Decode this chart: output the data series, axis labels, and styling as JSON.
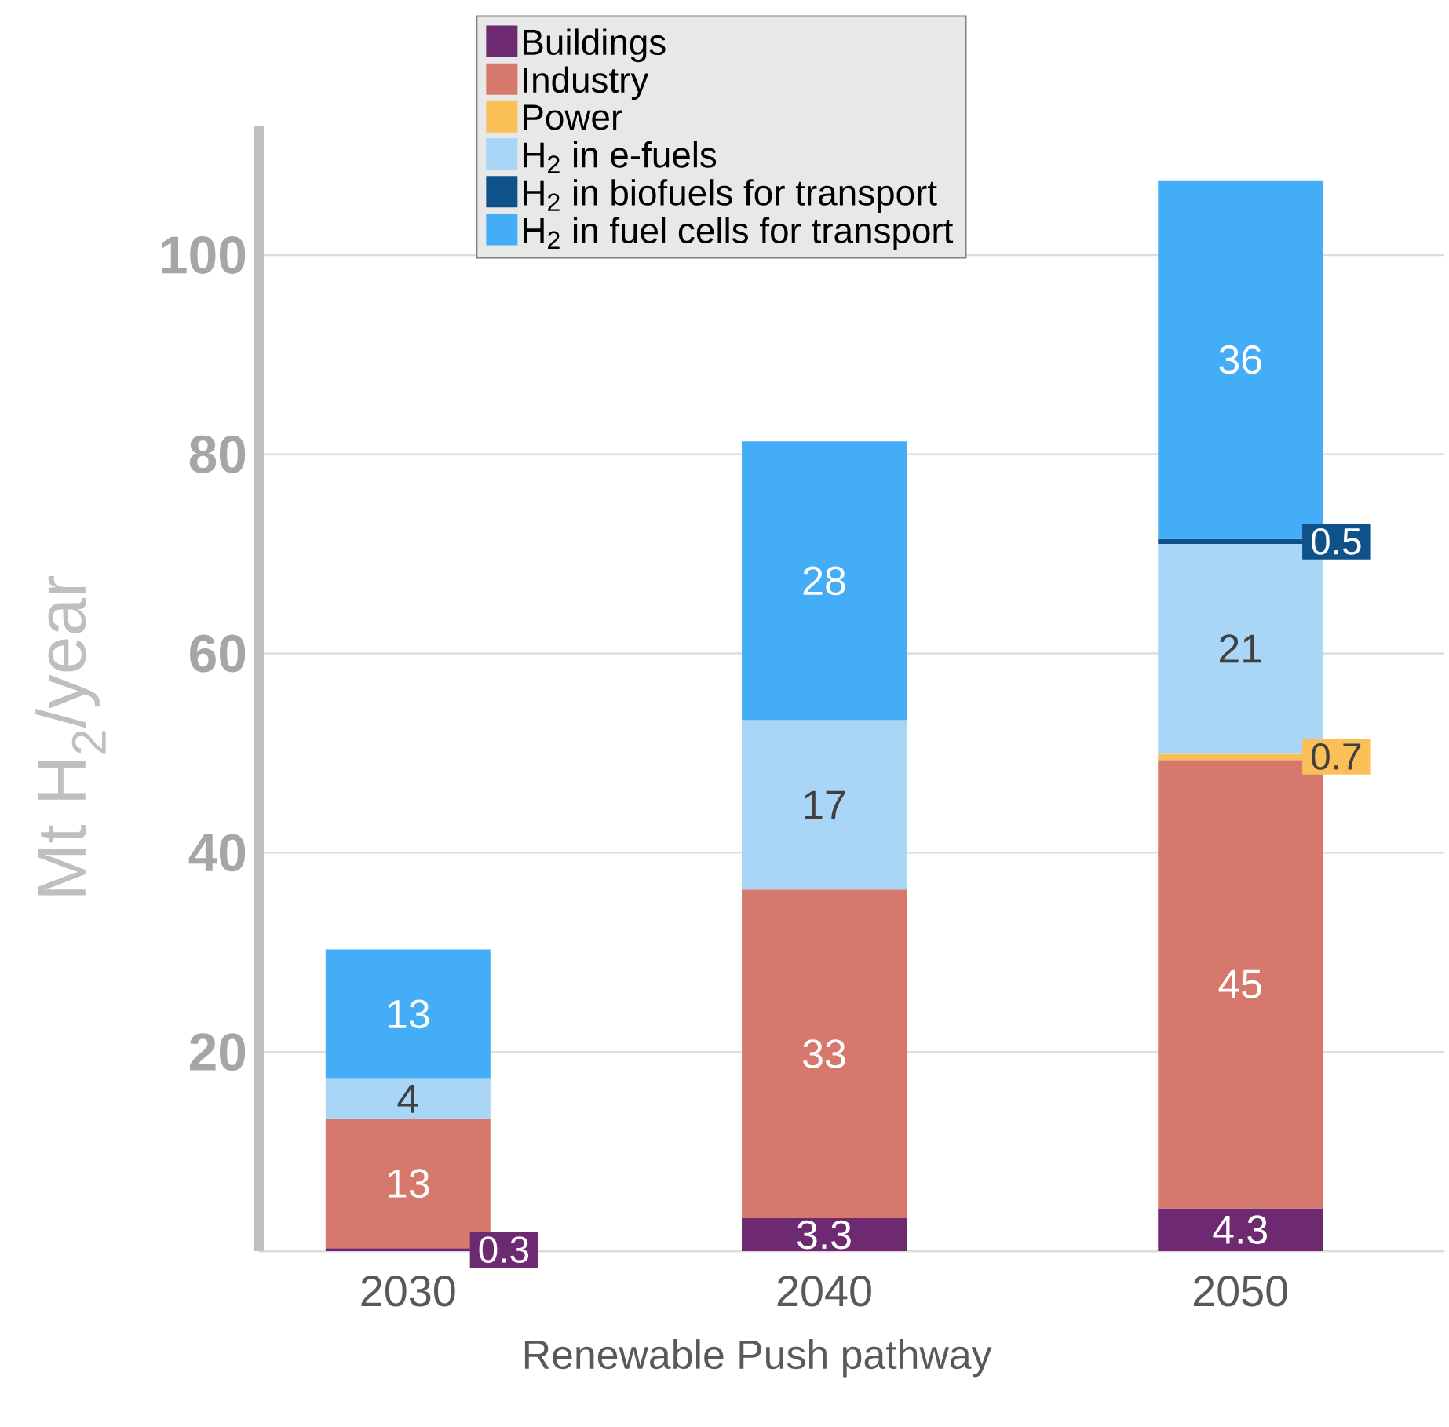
{
  "chart_data": {
    "type": "bar",
    "stacked": true,
    "xlabel": "Renewable Push pathway",
    "ylabel": "Mt H$_{2}$/year",
    "categories": [
      "2030",
      "2040",
      "2050"
    ],
    "series": [
      {
        "name": "Buildings",
        "color": "#6e2a70",
        "values": [
          0.3,
          3.3,
          4.3
        ],
        "value_labels": [
          "0.3",
          "3.3",
          "4.3"
        ]
      },
      {
        "name": "Industry",
        "color": "#d6786c",
        "values": [
          13,
          33,
          45
        ],
        "value_labels": [
          "13",
          "33",
          "45"
        ]
      },
      {
        "name": "Power",
        "color": "#fbbf58",
        "values": [
          null,
          null,
          0.7
        ],
        "value_labels": [
          null,
          null,
          "0.7"
        ]
      },
      {
        "name": "H$_{2}$ in e-fuels",
        "color": "#a9d5f6",
        "values": [
          4,
          17,
          21
        ],
        "value_labels": [
          "4",
          "17",
          "21"
        ]
      },
      {
        "name": "H$_{2}$ in biofuels for transport",
        "color": "#0f5289",
        "values": [
          null,
          null,
          0.5
        ],
        "value_labels": [
          null,
          null,
          "0.5"
        ]
      },
      {
        "name": "H$_{2}$ in fuel cells for transport",
        "color": "#44adf8",
        "values": [
          13,
          28,
          36
        ],
        "value_labels": [
          "13",
          "28",
          "36"
        ]
      }
    ],
    "ylim": [
      0,
      113
    ],
    "yticks": [
      20,
      40,
      60,
      80,
      100
    ],
    "grid": "y",
    "legend": "top"
  }
}
